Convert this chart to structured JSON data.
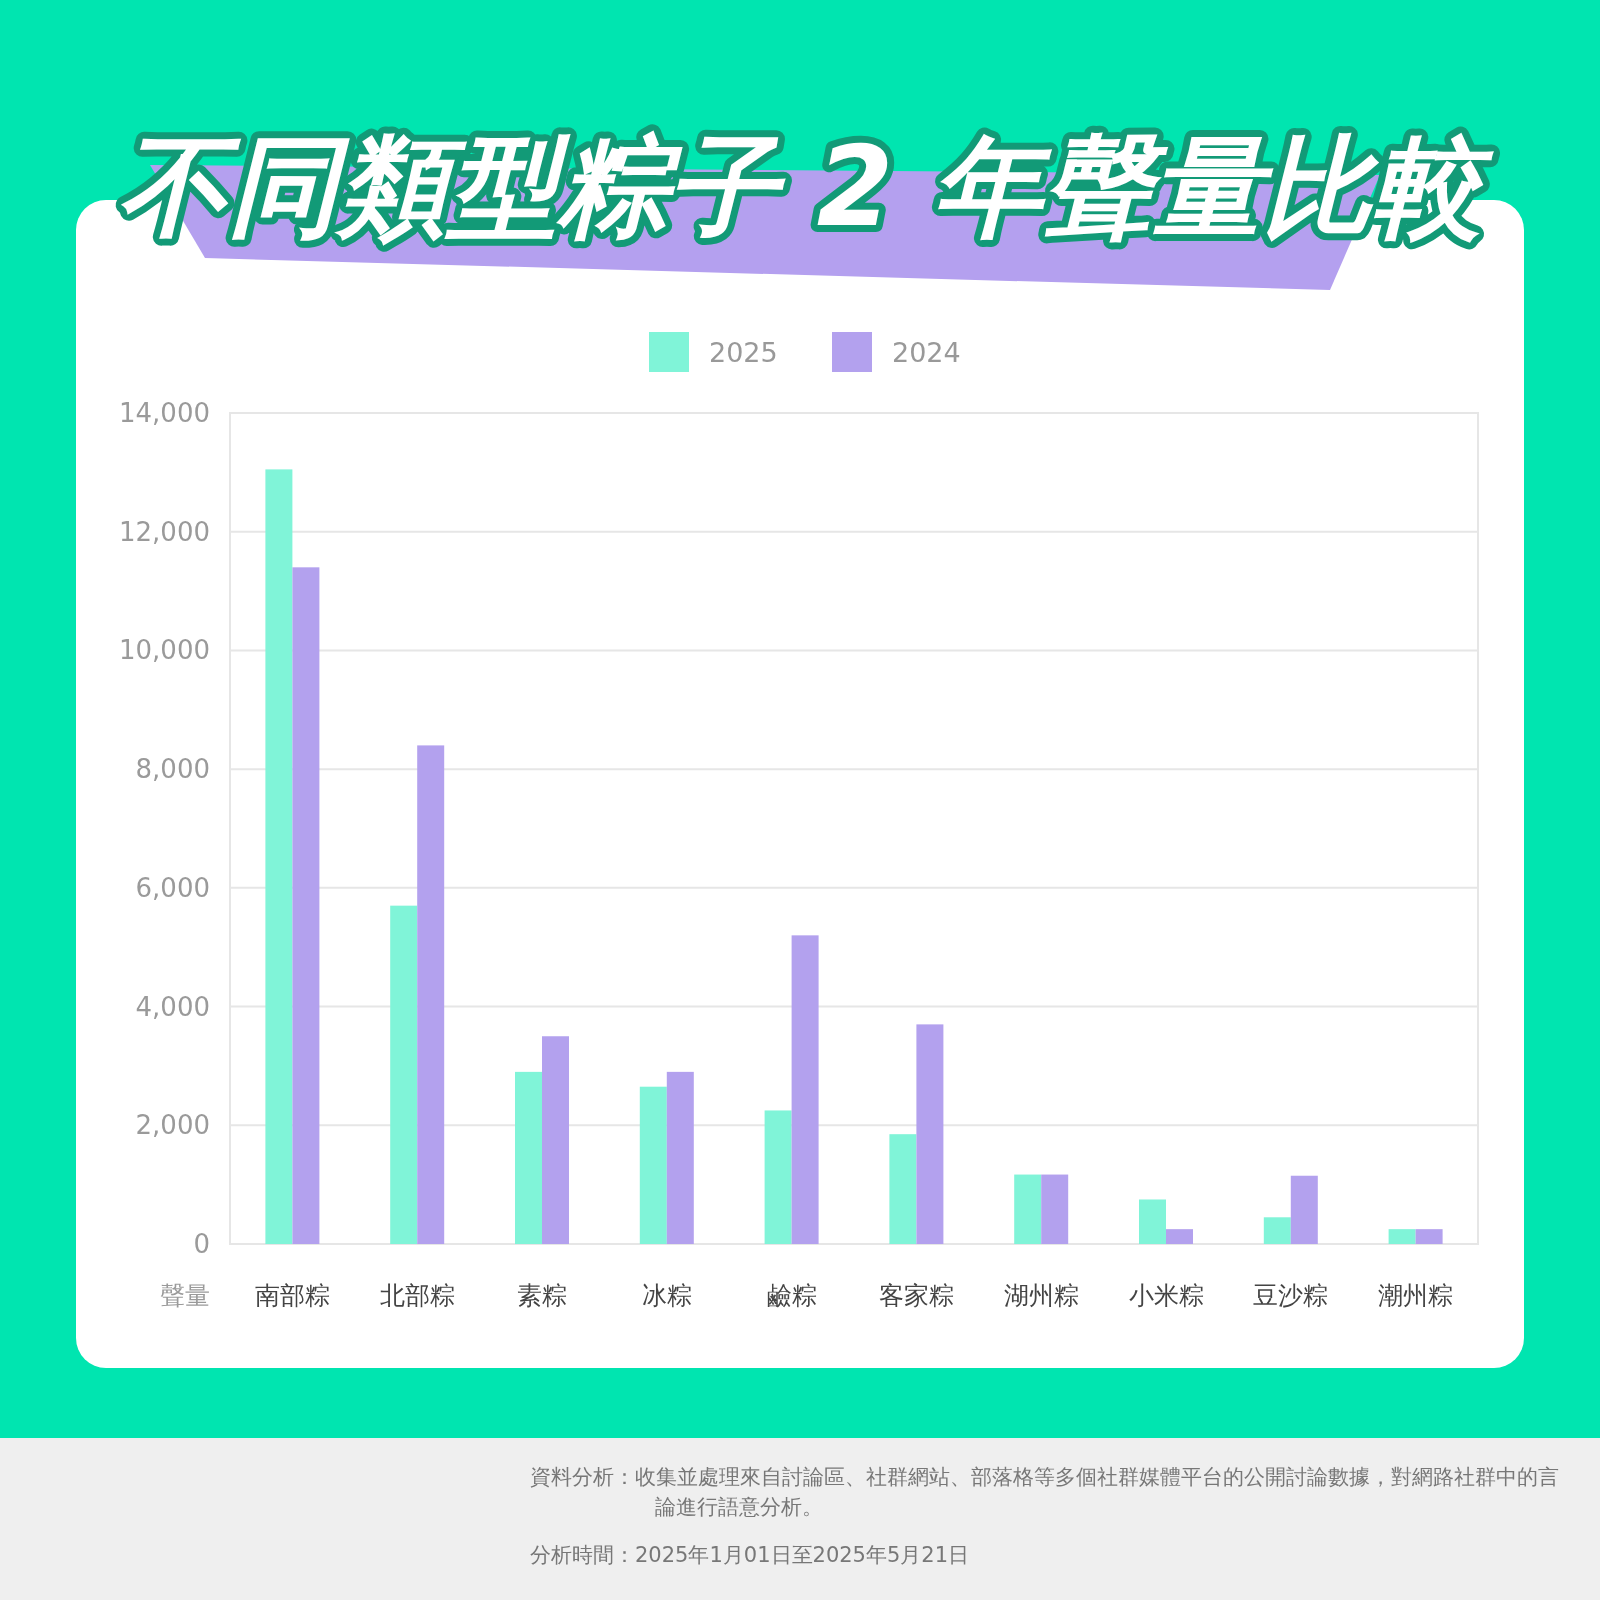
{
  "chart_data": {
    "type": "bar",
    "title": "不同類型粽子 2 年聲量比較",
    "ylabel": "聲量",
    "categories": [
      "南部粽",
      "北部粽",
      "素粽",
      "冰粽",
      "鹼粽",
      "客家粽",
      "湖州粽",
      "小米粽",
      "豆沙粽",
      "潮州粽"
    ],
    "series": [
      {
        "name": "2025",
        "color": "#80f4d8",
        "values": [
          13050,
          5700,
          2900,
          2650,
          2250,
          1850,
          1170,
          750,
          450,
          250
        ]
      },
      {
        "name": "2024",
        "color": "#b3a1ee",
        "values": [
          11400,
          8400,
          3500,
          2900,
          5200,
          3700,
          1170,
          250,
          1150,
          250
        ]
      }
    ],
    "ylim": [
      0,
      14000
    ],
    "yticks": [
      {
        "value": 0,
        "label": "0"
      },
      {
        "value": 2000,
        "label": "2,000"
      },
      {
        "value": 4000,
        "label": "4,000"
      },
      {
        "value": 6000,
        "label": "6,000"
      },
      {
        "value": 8000,
        "label": "8,000"
      },
      {
        "value": 10000,
        "label": "10,000"
      },
      {
        "value": 12000,
        "label": "12,000"
      },
      {
        "value": 14000,
        "label": "14,000"
      }
    ],
    "grid": "y",
    "legend": "top",
    "annotations": [
      "資料分析：收集並處理來自討論區、社群網站、部落格等多個社群媒體平台的公開討論數據，對網路社群中的言論進行語意分析。",
      "分析時間：2025年1月01日至2025年5月21日"
    ]
  }
}
